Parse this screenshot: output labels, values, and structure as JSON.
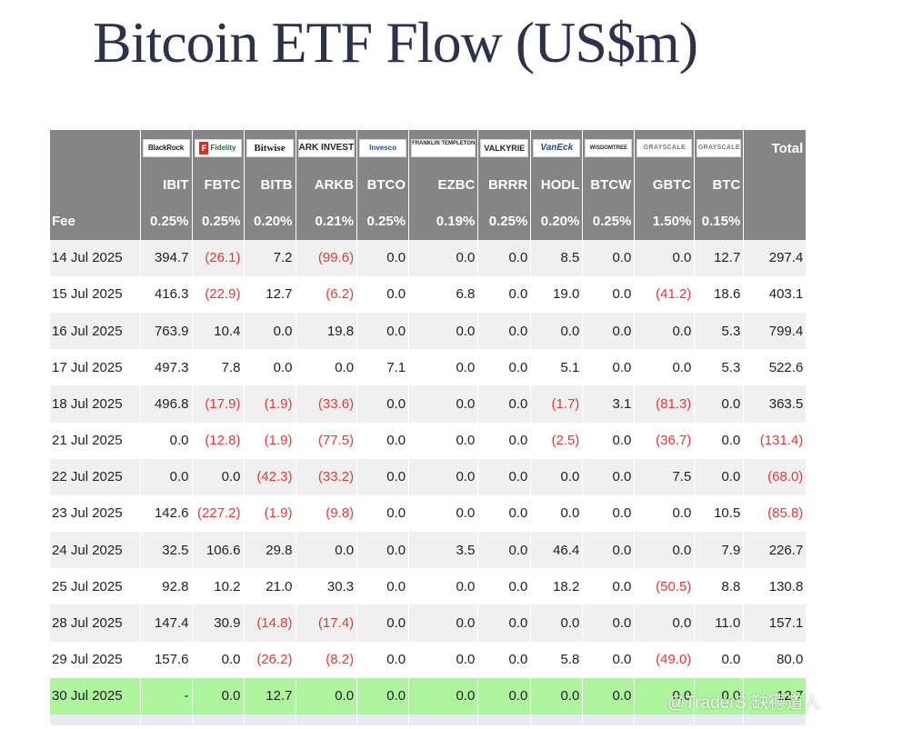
{
  "title": "Bitcoin ETF Flow (US$m)",
  "issuers": [
    {
      "name": "BlackRock",
      "ticker": "IBIT",
      "fee": "0.25%",
      "icon": "blackrock-logo"
    },
    {
      "name": "Fidelity",
      "ticker": "FBTC",
      "fee": "0.25%",
      "icon": "fidelity-logo"
    },
    {
      "name": "Bitwise",
      "ticker": "BITB",
      "fee": "0.20%",
      "icon": "bitwise-logo"
    },
    {
      "name": "ARK INVEST",
      "ticker": "ARKB",
      "fee": "0.21%",
      "icon": "ark-logo"
    },
    {
      "name": "Invesco",
      "ticker": "BTCO",
      "fee": "0.25%",
      "icon": "invesco-logo"
    },
    {
      "name": "FRANKLIN TEMPLETON",
      "ticker": "EZBC",
      "fee": "0.19%",
      "icon": "franklin-logo"
    },
    {
      "name": "VALKYRIE",
      "ticker": "BRRR",
      "fee": "0.25%",
      "icon": "valkyrie-logo"
    },
    {
      "name": "VanEck",
      "ticker": "HODL",
      "fee": "0.20%",
      "icon": "vaneck-logo"
    },
    {
      "name": "WISDOMTREE",
      "ticker": "BTCW",
      "fee": "0.25%",
      "icon": "wisdomtree-logo"
    },
    {
      "name": "GRAYSCALE",
      "ticker": "GBTC",
      "fee": "1.50%",
      "icon": "grayscale-logo"
    },
    {
      "name": "GRAYSCALE",
      "ticker": "BTC",
      "fee": "0.15%",
      "icon": "grayscale-logo"
    }
  ],
  "header": {
    "total_label": "Total",
    "fee_label": "Fee"
  },
  "rows": [
    {
      "date": "14 Jul 2025",
      "values": [
        "394.7",
        "(26.1)",
        "7.2",
        "(99.6)",
        "0.0",
        "0.0",
        "0.0",
        "8.5",
        "0.0",
        "0.0",
        "12.7"
      ],
      "total": "297.4"
    },
    {
      "date": "15 Jul 2025",
      "values": [
        "416.3",
        "(22.9)",
        "12.7",
        "(6.2)",
        "0.0",
        "6.8",
        "0.0",
        "19.0",
        "0.0",
        "(41.2)",
        "18.6"
      ],
      "total": "403.1"
    },
    {
      "date": "16 Jul 2025",
      "values": [
        "763.9",
        "10.4",
        "0.0",
        "19.8",
        "0.0",
        "0.0",
        "0.0",
        "0.0",
        "0.0",
        "0.0",
        "5.3"
      ],
      "total": "799.4"
    },
    {
      "date": "17 Jul 2025",
      "values": [
        "497.3",
        "7.8",
        "0.0",
        "0.0",
        "7.1",
        "0.0",
        "0.0",
        "5.1",
        "0.0",
        "0.0",
        "5.3"
      ],
      "total": "522.6"
    },
    {
      "date": "18 Jul 2025",
      "values": [
        "496.8",
        "(17.9)",
        "(1.9)",
        "(33.6)",
        "0.0",
        "0.0",
        "0.0",
        "(1.7)",
        "3.1",
        "(81.3)",
        "0.0"
      ],
      "total": "363.5"
    },
    {
      "date": "21 Jul 2025",
      "values": [
        "0.0",
        "(12.8)",
        "(1.9)",
        "(77.5)",
        "0.0",
        "0.0",
        "0.0",
        "(2.5)",
        "0.0",
        "(36.7)",
        "0.0"
      ],
      "total": "(131.4)"
    },
    {
      "date": "22 Jul 2025",
      "values": [
        "0.0",
        "0.0",
        "(42.3)",
        "(33.2)",
        "0.0",
        "0.0",
        "0.0",
        "0.0",
        "0.0",
        "7.5",
        "0.0"
      ],
      "total": "(68.0)"
    },
    {
      "date": "23 Jul 2025",
      "values": [
        "142.6",
        "(227.2)",
        "(1.9)",
        "(9.8)",
        "0.0",
        "0.0",
        "0.0",
        "0.0",
        "0.0",
        "0.0",
        "10.5"
      ],
      "total": "(85.8)"
    },
    {
      "date": "24 Jul 2025",
      "values": [
        "32.5",
        "106.6",
        "29.8",
        "0.0",
        "0.0",
        "3.5",
        "0.0",
        "46.4",
        "0.0",
        "0.0",
        "7.9"
      ],
      "total": "226.7"
    },
    {
      "date": "25 Jul 2025",
      "values": [
        "92.8",
        "10.2",
        "21.0",
        "30.3",
        "0.0",
        "0.0",
        "0.0",
        "18.2",
        "0.0",
        "(50.5)",
        "8.8"
      ],
      "total": "130.8"
    },
    {
      "date": "28 Jul 2025",
      "values": [
        "147.4",
        "30.9",
        "(14.8)",
        "(17.4)",
        "0.0",
        "0.0",
        "0.0",
        "0.0",
        "0.0",
        "0.0",
        "11.0"
      ],
      "total": "157.1"
    },
    {
      "date": "29 Jul 2025",
      "values": [
        "157.6",
        "0.0",
        "(26.2)",
        "(8.2)",
        "0.0",
        "0.0",
        "0.0",
        "5.8",
        "0.0",
        "(49.0)",
        "0.0"
      ],
      "total": "80.0"
    },
    {
      "date": "30 Jul 2025",
      "values": [
        "-",
        "0.0",
        "12.7",
        "0.0",
        "0.0",
        "0.0",
        "0.0",
        "0.0",
        "0.0",
        "0.0",
        "0.0"
      ],
      "total": "12.7",
      "highlight": true
    }
  ],
  "watermark": "@TraderS 缺德道人",
  "colors": {
    "header_bg": "#858585",
    "negative": "#e03a3a",
    "highlight_row": "#aef49f",
    "title": "#2e3249"
  }
}
